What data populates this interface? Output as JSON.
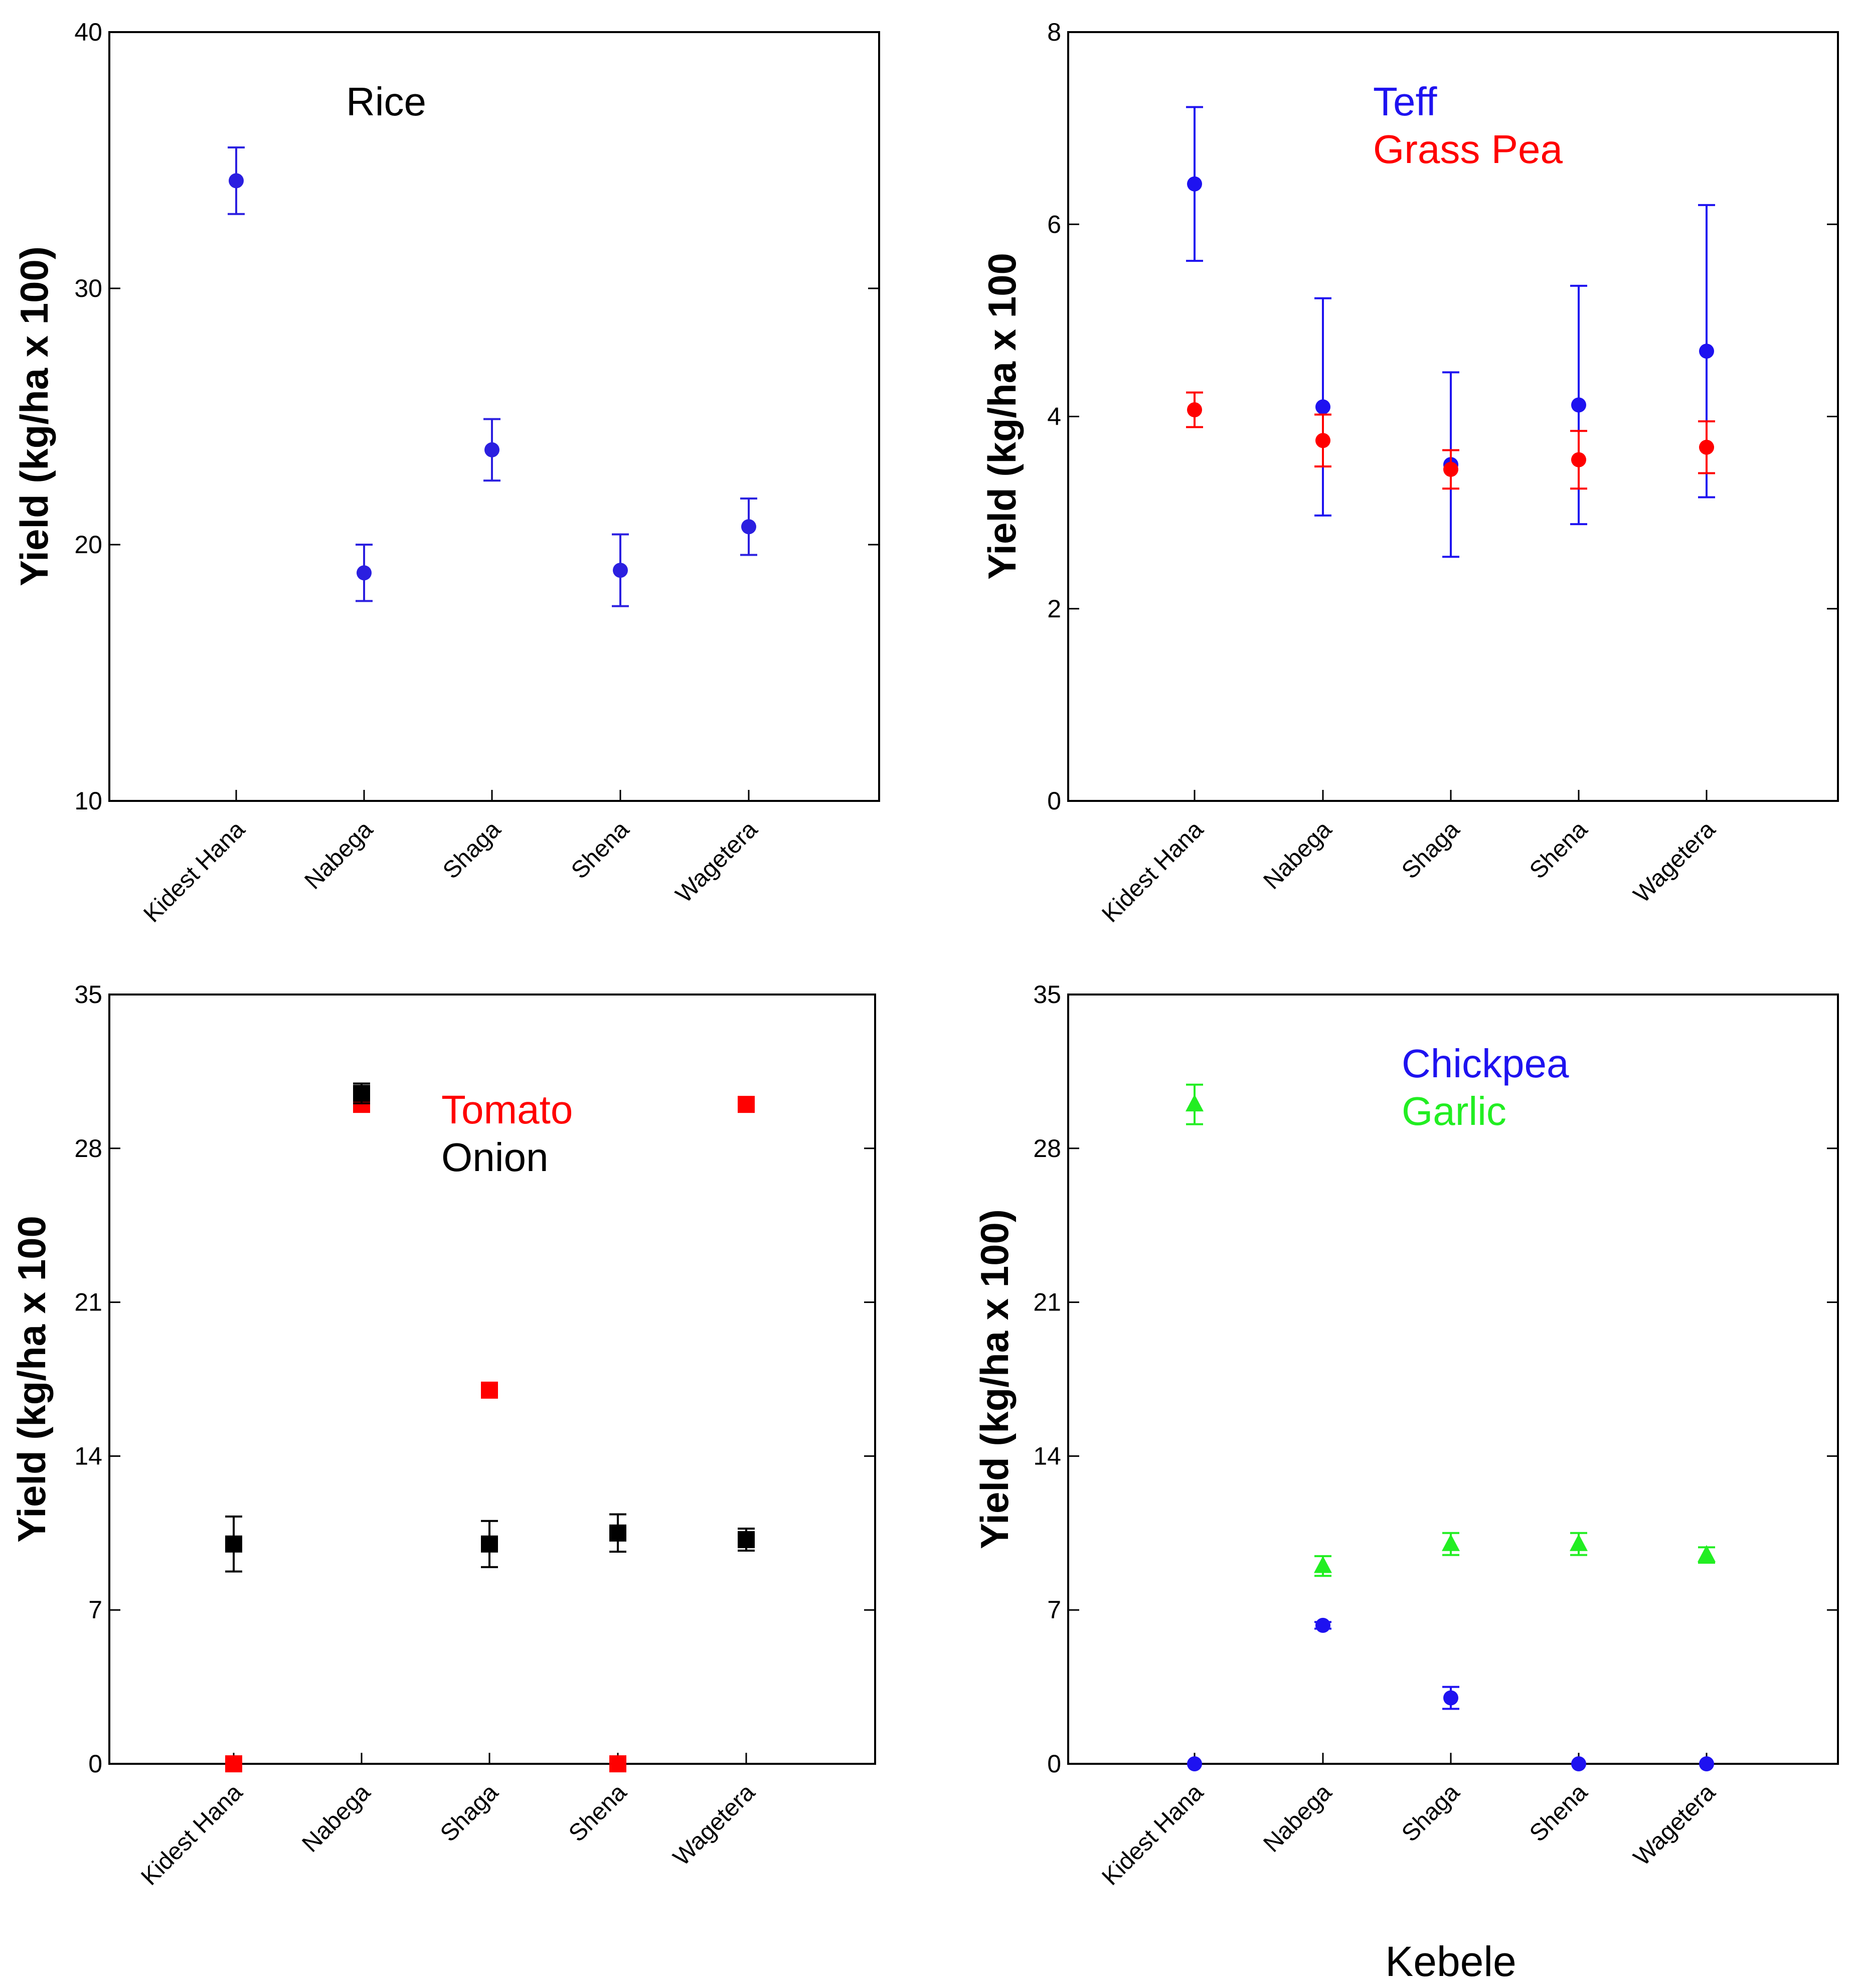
{
  "chart_data": [
    {
      "type": "scatter",
      "panel": "top-left",
      "categories": [
        "Kidest Hana",
        "Nabega",
        "Shaga",
        "Shena",
        "Wagetera"
      ],
      "ylabel": "Yield (kg/ha x 100)",
      "xlabel": "",
      "ylim": [
        10,
        40
      ],
      "yticks": [
        10,
        20,
        30,
        40
      ],
      "legend_position": "top-center",
      "series": [
        {
          "name": "Rice",
          "color": "#2b1fe0",
          "marker": "circle",
          "values": [
            34.2,
            18.9,
            23.7,
            19.0,
            20.7
          ],
          "errors": [
            1.3,
            1.1,
            1.2,
            1.4,
            1.1
          ]
        }
      ]
    },
    {
      "type": "scatter",
      "panel": "top-right",
      "categories": [
        "Kidest Hana",
        "Nabega",
        "Shaga",
        "Shena",
        "Wagetera"
      ],
      "ylabel": "Yield (kg/ha x 100",
      "xlabel": "",
      "ylim": [
        0,
        8
      ],
      "yticks": [
        0,
        2,
        4,
        6,
        8
      ],
      "legend_position": "top-center",
      "series": [
        {
          "name": "Teff",
          "color": "#1e12f0",
          "marker": "circle",
          "values": [
            6.42,
            4.1,
            3.5,
            4.12,
            4.68
          ],
          "errors": [
            0.8,
            1.13,
            0.96,
            1.24,
            1.52
          ]
        },
        {
          "name": "Grass Pea",
          "color": "#ff0000",
          "marker": "circle",
          "values": [
            4.07,
            3.75,
            3.45,
            3.55,
            3.68
          ],
          "errors": [
            0.18,
            0.27,
            0.2,
            0.3,
            0.27
          ]
        }
      ]
    },
    {
      "type": "scatter",
      "panel": "bottom-left",
      "categories": [
        "Kidest Hana",
        "Nabega",
        "Shaga",
        "Shena",
        "Wagetera"
      ],
      "ylabel": "Yield (kg/ha x 100",
      "xlabel": "",
      "ylim": [
        0,
        35
      ],
      "yticks": [
        0,
        7,
        14,
        21,
        28,
        35
      ],
      "legend_position": "top-center",
      "series": [
        {
          "name": "Tomato",
          "color": "#ff0000",
          "marker": "square",
          "values": [
            0,
            30.0,
            17.0,
            0,
            30.0
          ],
          "errors": [
            0,
            0,
            0,
            0,
            0
          ]
        },
        {
          "name": "Onion",
          "color": "#000000",
          "marker": "square",
          "values": [
            10.0,
            30.5,
            10.0,
            10.5,
            10.2
          ],
          "errors": [
            1.25,
            0.45,
            1.05,
            0.85,
            0.5
          ]
        }
      ]
    },
    {
      "type": "scatter",
      "panel": "bottom-right",
      "categories": [
        "Kidest Hana",
        "Nabega",
        "Shaga",
        "Shena",
        "Wagetera"
      ],
      "ylabel": "Yield (kg/ha x 100)",
      "xlabel": "Kebele",
      "ylim": [
        0,
        35
      ],
      "yticks": [
        0,
        7,
        14,
        21,
        28,
        35
      ],
      "legend_position": "top-center",
      "series": [
        {
          "name": "Chickpea",
          "color": "#1e12f0",
          "marker": "circle",
          "values": [
            0,
            6.3,
            3.0,
            0,
            0
          ],
          "errors": [
            0,
            0.15,
            0.5,
            0,
            0
          ]
        },
        {
          "name": "Garlic",
          "color": "#22ee22",
          "marker": "triangle",
          "values": [
            30.0,
            9.0,
            10.0,
            10.0,
            9.5
          ],
          "errors": [
            0.9,
            0.45,
            0.5,
            0.5,
            0.35
          ]
        }
      ]
    }
  ]
}
